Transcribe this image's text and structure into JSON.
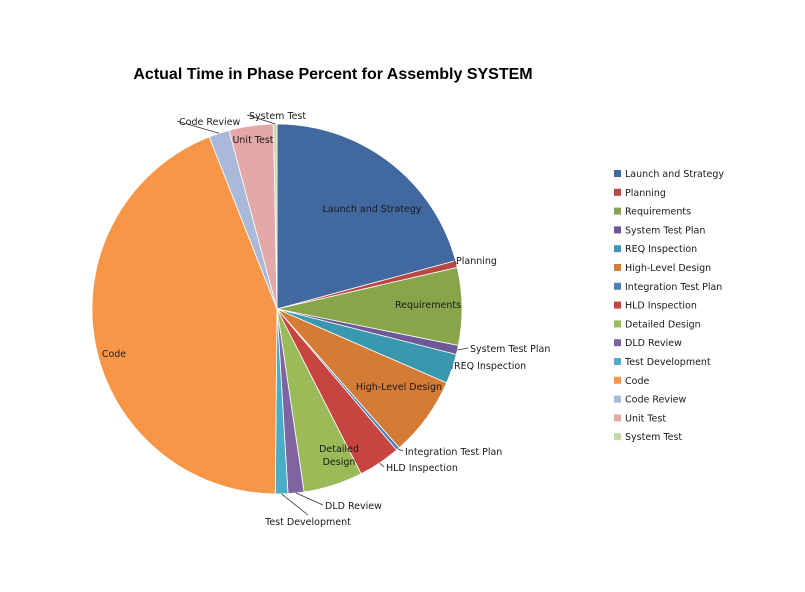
{
  "chart_data": {
    "type": "pie",
    "title": "Actual Time in Phase Percent for Assembly SYSTEM",
    "legend_position": "right",
    "slices": [
      {
        "label": "Launch and Strategy",
        "value": 20.9,
        "color": "#4169A0"
      },
      {
        "label": "Planning",
        "value": 0.6,
        "color": "#B84744"
      },
      {
        "label": "Requirements",
        "value": 6.8,
        "color": "#88A54A"
      },
      {
        "label": "System Test Plan",
        "value": 0.8,
        "color": "#6E5895"
      },
      {
        "label": "REQ Inspection",
        "value": 2.6,
        "color": "#3997AE"
      },
      {
        "label": "High-Level Design",
        "value": 7.0,
        "color": "#D47B36"
      },
      {
        "label": "Integration Test Plan",
        "value": 0.3,
        "color": "#4B81BC"
      },
      {
        "label": "HLD Inspection",
        "value": 3.7,
        "color": "#C84440"
      },
      {
        "label": "Detailed Design",
        "value": 5.2,
        "color": "#9BBB59"
      },
      {
        "label": "DLD Review",
        "value": 1.4,
        "color": "#8064A2"
      },
      {
        "label": "Test Development",
        "value": 1.1,
        "color": "#4BACC6"
      },
      {
        "label": "Code",
        "value": 44.1,
        "color": "#F79646"
      },
      {
        "label": "Code Review",
        "value": 1.8,
        "color": "#A9B9D9"
      },
      {
        "label": "Unit Test",
        "value": 3.9,
        "color": "#E3A8A8"
      },
      {
        "label": "System Test",
        "value": 0.3,
        "color": "#C5D9A3"
      }
    ],
    "slice_labels": [
      [
        "Launch and Strategy"
      ],
      [
        "Planning"
      ],
      [
        "Requirements"
      ],
      [
        "System Test Plan"
      ],
      [
        "REQ Inspection"
      ],
      [
        "High-Level Design"
      ],
      [
        "Integration Test Plan"
      ],
      [
        "HLD Inspection"
      ],
      [
        "Detailed",
        "Design"
      ],
      [
        "DLD Review"
      ],
      [
        "Test Development"
      ],
      [
        "Code"
      ],
      [
        "Code Review"
      ],
      [
        "Unit Test"
      ],
      [
        "System Test"
      ]
    ]
  }
}
